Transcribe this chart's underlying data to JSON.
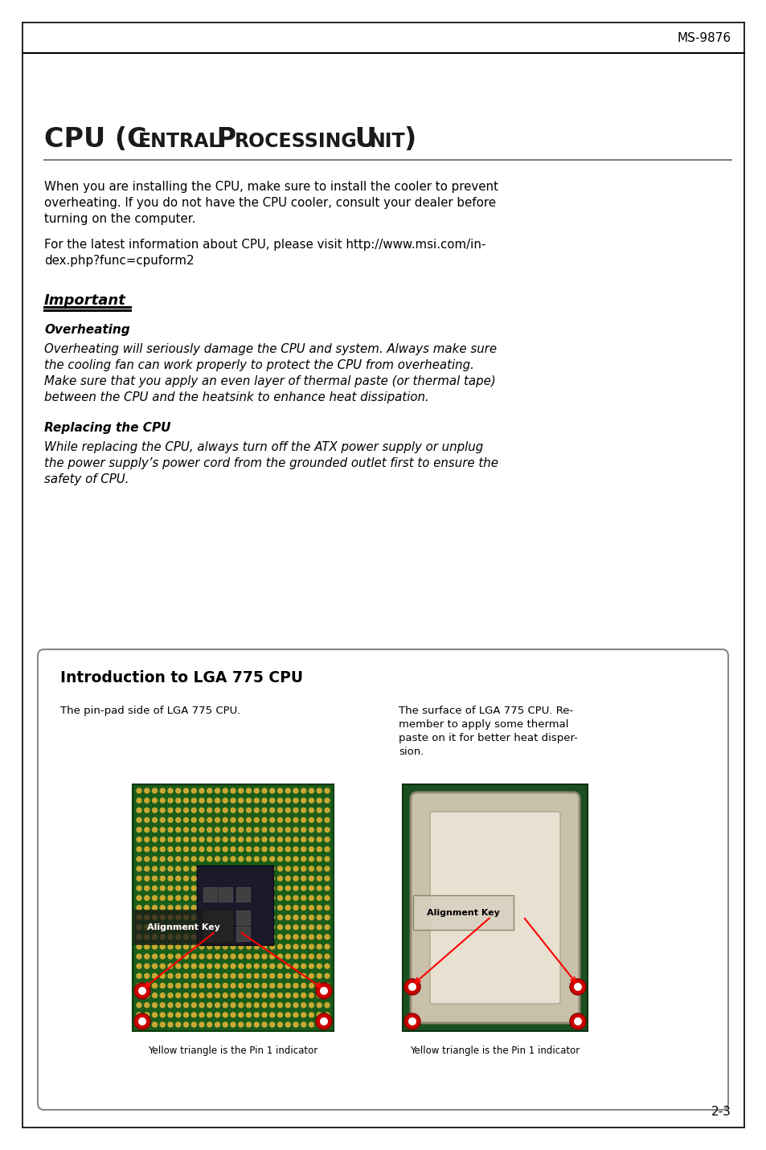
{
  "page_bg": "#ffffff",
  "header_text": "MS-9876",
  "title_cpu": "CPU (",
  "title_rest": "Central Processing Unit)",
  "para1_line1": "When you are installing the CPU, make sure to install the cooler to prevent",
  "para1_line2": "overheating. If you do not have the CPU cooler, consult your dealer before",
  "para1_line3": "turning on the computer.",
  "para2_line1": "For the latest information about CPU, please visit http://www.msi.com/in-",
  "para2_line2": "dex.php?func=cpuform2",
  "important_label": "Important",
  "section1_title": "Overheating",
  "section1_l1": "Overheating will seriously damage the CPU and system. Always make sure",
  "section1_l2": "the cooling fan can work properly to protect the CPU from overheating.",
  "section1_l3": "Make sure that you apply an even layer of thermal paste (or thermal tape)",
  "section1_l4": "between the CPU and the heatsink to enhance heat dissipation.",
  "section2_title": "Replacing the CPU",
  "section2_l1": "While replacing the CPU, always turn off the ATX power supply or unplug",
  "section2_l2": "the power supply’s power cord from the grounded outlet first to ensure the",
  "section2_l3": "safety of CPU.",
  "box_title": "Introduction to LGA 775 CPU",
  "left_caption": "The pin-pad side of LGA 775 CPU.",
  "right_cap_l1": "The surface of LGA 775 CPU. Re-",
  "right_cap_l2": "member to apply some thermal",
  "right_cap_l3": "paste on it for better heat disper-",
  "right_cap_l4": "sion.",
  "left_img_label": "Alignment Key",
  "right_img_label": "Alignment Key",
  "left_footnote": "Yellow triangle is the Pin 1 indicator",
  "right_footnote": "Yellow triangle is the Pin 1 indicator",
  "footer_text": "2-3",
  "text_color": "#000000",
  "gray_line_color": "#808080",
  "box_border_color": "#888888",
  "pad_color": "#c8a832",
  "pcb_color": "#1a5c1a",
  "pcb_edge_color": "#0a3a0a",
  "die_color": "#1a1a2a",
  "ihs_color": "#c8c0a8",
  "ihs_edge_color": "#908870"
}
